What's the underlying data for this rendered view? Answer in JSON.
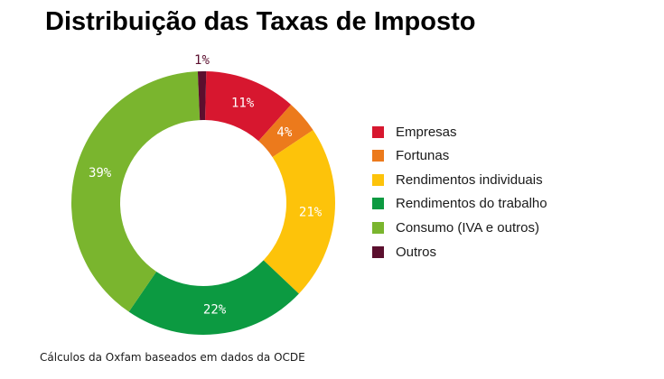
{
  "title": "Distribuição das Taxas de Imposto",
  "source_note": "Cálculos da Oxfam baseados em dados da OCDE",
  "chart_data": {
    "type": "pie",
    "title": "Distribuição das Taxas de Imposto",
    "donut": true,
    "legend_position": "right",
    "slices": [
      {
        "label": "Empresas",
        "value": 11,
        "value_label": "11%",
        "color": "#d7172f"
      },
      {
        "label": "Fortunas",
        "value": 4,
        "value_label": "4%",
        "color": "#ec7a1c"
      },
      {
        "label": "Rendimentos individuais",
        "value": 21,
        "value_label": "21%",
        "color": "#fdc30a"
      },
      {
        "label": "Rendimentos do trabalho",
        "value": 22,
        "value_label": "22%",
        "color": "#0c9a41"
      },
      {
        "label": "Consumo (IVA e outros)",
        "value": 39,
        "value_label": "39%",
        "color": "#7ab52e"
      },
      {
        "label": "Outros",
        "value": 1,
        "value_label": "1%",
        "color": "#5b0f2e"
      }
    ]
  }
}
